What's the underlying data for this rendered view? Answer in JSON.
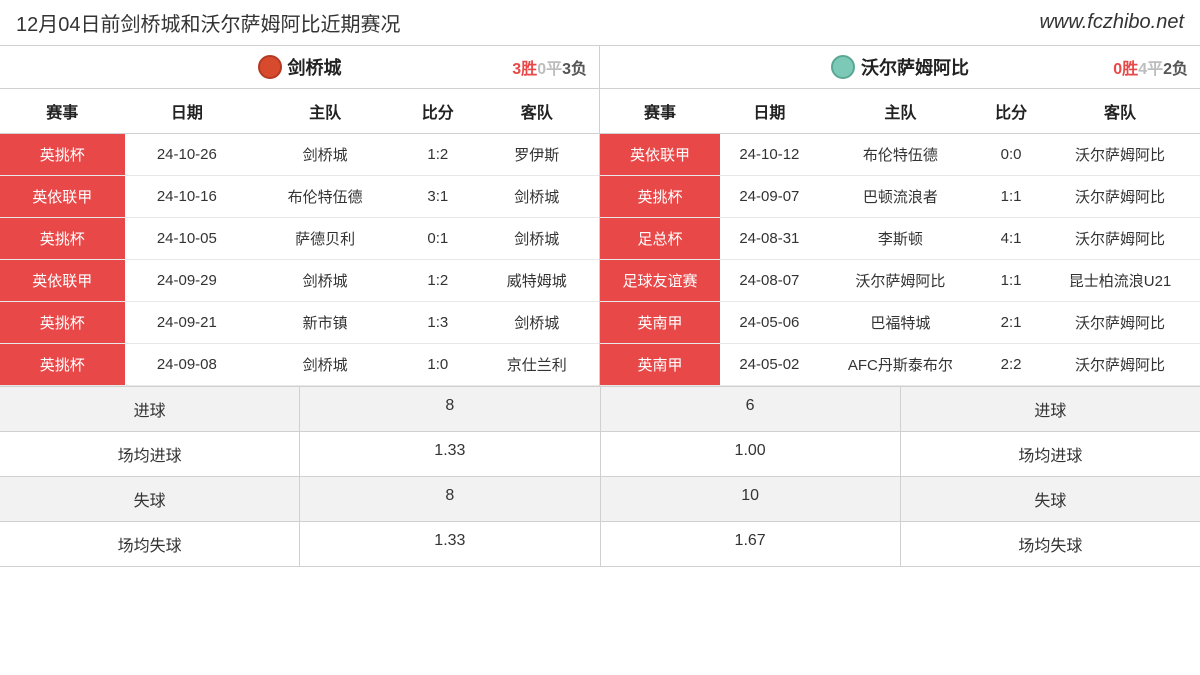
{
  "header": {
    "title": "12月04日前剑桥城和沃尔萨姆阿比近期赛况",
    "url": "www.fczhibo.net"
  },
  "colors": {
    "comp_bg": "#e84848",
    "win": "#e84848",
    "draw": "#bdbdbd",
    "loss": "#555555"
  },
  "columns": [
    "赛事",
    "日期",
    "主队",
    "比分",
    "客队"
  ],
  "left": {
    "team": "剑桥城",
    "record": {
      "win": "3胜",
      "draw": "0平",
      "loss": "3负"
    },
    "rows": [
      {
        "comp": "英挑杯",
        "date": "24-10-26",
        "home": "剑桥城",
        "score": "1:2",
        "away": "罗伊斯"
      },
      {
        "comp": "英依联甲",
        "date": "24-10-16",
        "home": "布伦特伍德",
        "score": "3:1",
        "away": "剑桥城"
      },
      {
        "comp": "英挑杯",
        "date": "24-10-05",
        "home": "萨德贝利",
        "score": "0:1",
        "away": "剑桥城"
      },
      {
        "comp": "英依联甲",
        "date": "24-09-29",
        "home": "剑桥城",
        "score": "1:2",
        "away": "威特姆城"
      },
      {
        "comp": "英挑杯",
        "date": "24-09-21",
        "home": "新市镇",
        "score": "1:3",
        "away": "剑桥城"
      },
      {
        "comp": "英挑杯",
        "date": "24-09-08",
        "home": "剑桥城",
        "score": "1:0",
        "away": "京仕兰利"
      }
    ]
  },
  "right": {
    "team": "沃尔萨姆阿比",
    "record": {
      "win": "0胜",
      "draw": "4平",
      "loss": "2负"
    },
    "rows": [
      {
        "comp": "英依联甲",
        "date": "24-10-12",
        "home": "布伦特伍德",
        "score": "0:0",
        "away": "沃尔萨姆阿比"
      },
      {
        "comp": "英挑杯",
        "date": "24-09-07",
        "home": "巴顿流浪者",
        "score": "1:1",
        "away": "沃尔萨姆阿比"
      },
      {
        "comp": "足总杯",
        "date": "24-08-31",
        "home": "李斯顿",
        "score": "4:1",
        "away": "沃尔萨姆阿比"
      },
      {
        "comp": "足球友谊赛",
        "date": "24-08-07",
        "home": "沃尔萨姆阿比",
        "score": "1:1",
        "away": "昆士柏流浪U21"
      },
      {
        "comp": "英南甲",
        "date": "24-05-06",
        "home": "巴福特城",
        "score": "2:1",
        "away": "沃尔萨姆阿比"
      },
      {
        "comp": "英南甲",
        "date": "24-05-02",
        "home": "AFC丹斯泰布尔",
        "score": "2:2",
        "away": "沃尔萨姆阿比"
      }
    ]
  },
  "summary": [
    {
      "l_label": "进球",
      "l_val": "8",
      "r_val": "6",
      "r_label": "进球"
    },
    {
      "l_label": "场均进球",
      "l_val": "1.33",
      "r_val": "1.00",
      "r_label": "场均进球"
    },
    {
      "l_label": "失球",
      "l_val": "8",
      "r_val": "10",
      "r_label": "失球"
    },
    {
      "l_label": "场均失球",
      "l_val": "1.33",
      "r_val": "1.67",
      "r_label": "场均失球"
    }
  ]
}
